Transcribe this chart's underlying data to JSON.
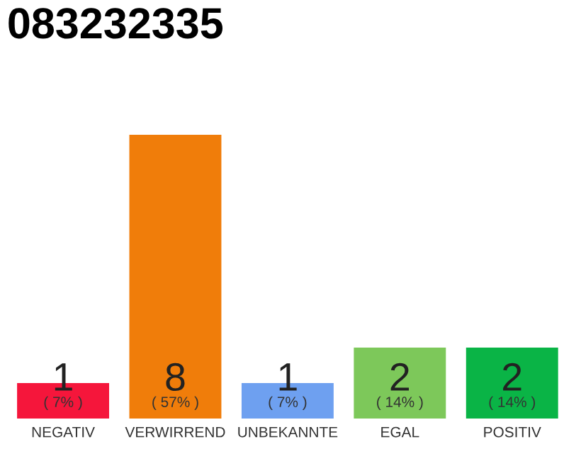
{
  "chart_data": {
    "type": "bar",
    "title": "083232335",
    "categories": [
      "NEGATIV",
      "VERWIRREND",
      "UNBEKANNTE",
      "EGAL",
      "POSITIV"
    ],
    "values": [
      1,
      8,
      1,
      2,
      2
    ],
    "colors": [
      "#f5163b",
      "#f07d0a",
      "#6ea0f0",
      "#7dc85a",
      "#0ab446"
    ],
    "data_labels": true,
    "annotations": [
      {
        "text": "( 7% )",
        "x": "NEGATIV",
        "y": 0
      },
      {
        "text": "( 57% )",
        "x": "VERWIRREND",
        "y": 0
      },
      {
        "text": "( 7% )",
        "x": "UNBEKANNTE",
        "y": 0
      },
      {
        "text": "( 14% )",
        "x": "EGAL",
        "y": 0
      },
      {
        "text": "( 14% )",
        "x": "POSITIV",
        "y": 0
      }
    ],
    "grid": false,
    "legend": false
  }
}
